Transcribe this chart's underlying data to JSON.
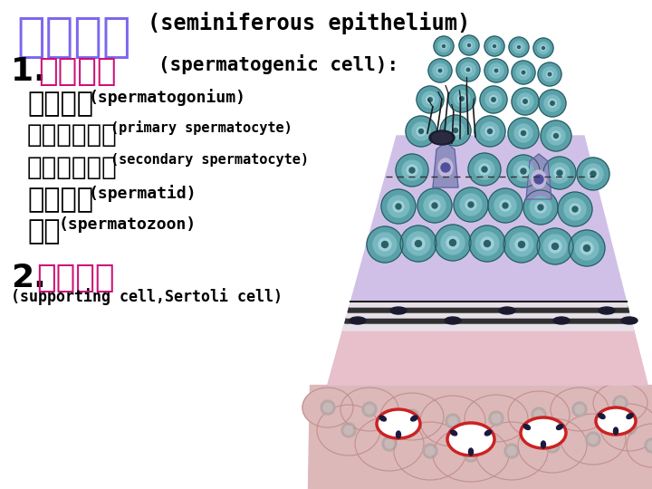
{
  "bg_color": "#ffffff",
  "title_chinese": "生精上皮",
  "title_english": "(seminiferous epithelium)",
  "title_chinese_color": "#7B68EE",
  "title_english_color": "#000000",
  "title_chinese_size": 38,
  "title_english_size": 17,
  "line1_prefix": "1. ",
  "line1_chinese": "生精细胞",
  "line1_english": "(spermatogenic cell):",
  "line1_prefix_color": "#000000",
  "line1_chinese_color": "#CC1177",
  "line1_english_color": "#000000",
  "line1_chinese_size": 26,
  "line1_english_size": 15,
  "sub_items": [
    {
      "chinese": "精原细胞",
      "english": "(spermatogonium)",
      "cn_size": 22,
      "en_size": 13
    },
    {
      "chinese": "初级精母细胞",
      "english": "(primary spermatocyte)",
      "cn_size": 20,
      "en_size": 11
    },
    {
      "chinese": "次级精母细胞",
      "english": "(secondary spermatocyte)",
      "cn_size": 20,
      "en_size": 11
    },
    {
      "chinese": "精子细胞",
      "english": "(spermatid)",
      "cn_size": 22,
      "en_size": 13
    },
    {
      "chinese": "精子",
      "english": "(spermatozoon)",
      "cn_size": 22,
      "en_size": 13
    }
  ],
  "line2_prefix": "2.",
  "line2_chinese": "支持细胞",
  "line2_english": "(supporting cell,Sertoli cell)",
  "line2_chinese_color": "#CC1177",
  "line2_english_color": "#000000",
  "line2_chinese_size": 26,
  "line2_english_size": 12,
  "text_black": "#000000",
  "tubule_fill": "#D0C0E8",
  "tubule_pink_fill": "#E8C0CC",
  "cell_teal_outer": "#5AA0A8",
  "cell_teal_mid": "#78B8C0",
  "cell_teal_inner": "#A0D0D8",
  "cell_dark_nucleus": "#2A6068",
  "cell_pale_fill": "#9090C0",
  "cell_pale_light": "#C0B8D8",
  "dark_band_color": "#404040",
  "white_band_color": "#F0EEF0",
  "pink_base_color": "#E8C8C8",
  "vessel_red": "#CC2222",
  "connective_pink": "#DDB8B8"
}
